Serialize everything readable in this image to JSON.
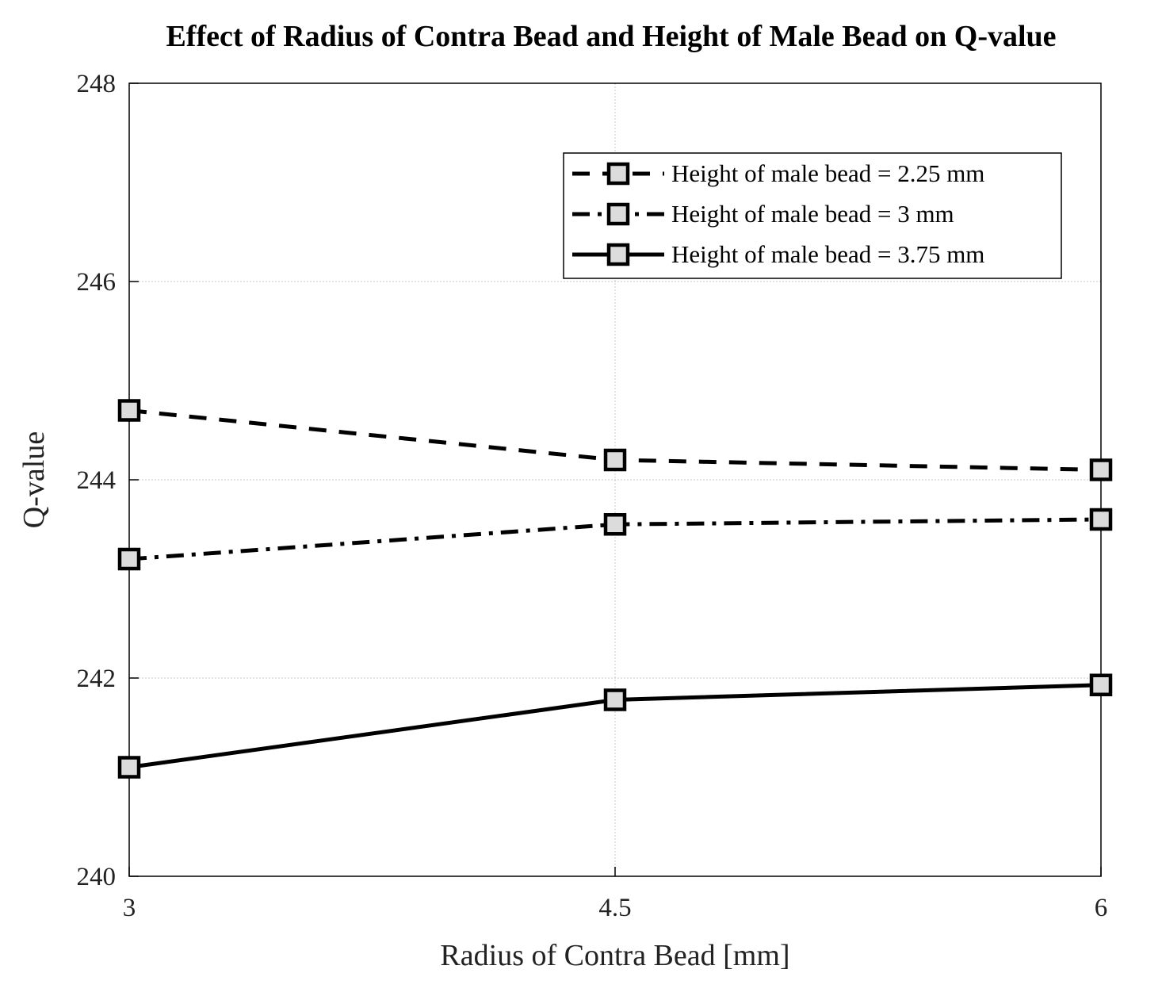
{
  "chart_data": {
    "type": "line",
    "title": "Effect of Radius of Contra Bead and Height of Male Bead on Q-value",
    "xlabel": "Radius of Contra Bead [mm]",
    "ylabel": "Q-value",
    "x": [
      3,
      4.5,
      6
    ],
    "x_tick_labels": [
      "3",
      "4.5",
      "6"
    ],
    "xlim": [
      3,
      6
    ],
    "ylim": [
      240,
      248
    ],
    "y_ticks": [
      240,
      242,
      244,
      246,
      248
    ],
    "y_tick_labels": [
      "240",
      "242",
      "244",
      "246",
      "248"
    ],
    "grid": true,
    "legend_position": "top-right",
    "series": [
      {
        "name": "Height of male bead = 2.25 mm",
        "style": "dashed",
        "marker": "square",
        "values": [
          244.7,
          244.2,
          244.1
        ]
      },
      {
        "name": "Height of male bead = 3 mm",
        "style": "dash-dot",
        "marker": "square",
        "values": [
          243.2,
          243.55,
          243.6
        ]
      },
      {
        "name": "Height of male bead = 3.75 mm",
        "style": "solid",
        "marker": "square",
        "values": [
          241.1,
          241.78,
          241.93
        ]
      }
    ],
    "colors": {
      "line": "#000000",
      "marker_fill": "#dcdcdc",
      "grid": "#c8c8c8"
    }
  }
}
